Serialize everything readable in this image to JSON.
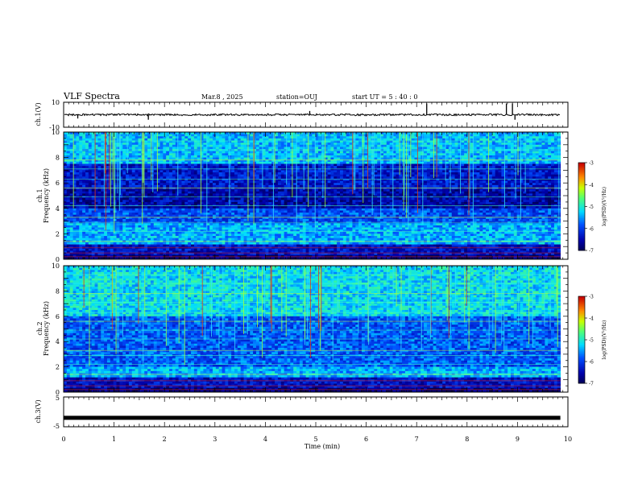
{
  "header": {
    "title": "VLF Spectra",
    "date": "Mar.8 , 2025",
    "station": "station=OUJ",
    "start_ut": "start UT = 5 : 40 : 0"
  },
  "chart_data": [
    {
      "type": "line",
      "name": "ch1-waveform",
      "ylabel": "ch.1(V)",
      "xlim": [
        0,
        10
      ],
      "ylim": [
        -10,
        10
      ],
      "yticks": [
        "10",
        "-10"
      ],
      "baseline": 0,
      "x_extent": 9.85,
      "spikes": [
        {
          "x": 0.28,
          "y": -3
        },
        {
          "x": 1.68,
          "y": -4
        },
        {
          "x": 4.88,
          "y": 3
        },
        {
          "x": 7.2,
          "y": 9
        },
        {
          "x": 8.78,
          "y": 9
        },
        {
          "x": 8.9,
          "y": 9
        },
        {
          "x": 8.95,
          "y": -4
        }
      ]
    },
    {
      "type": "heatmap",
      "name": "ch1-spectrogram",
      "ylabel_line1": "ch.1",
      "ylabel_line2": "Frequency (kHz)",
      "xlim": [
        0,
        10
      ],
      "ylim": [
        0,
        10
      ],
      "yticks": [
        "0",
        "2",
        "4",
        "6",
        "8",
        "10"
      ],
      "x_extent": 9.85,
      "colorbar": {
        "label": "log(PSD)(V²/Hz)",
        "ticks": [
          "-3",
          "-4",
          "-5",
          "-6",
          "-7"
        ],
        "range": [
          -7,
          -3
        ]
      }
    },
    {
      "type": "heatmap",
      "name": "ch2-spectrogram",
      "ylabel_line1": "ch.2",
      "ylabel_line2": "Frequency (kHz)",
      "xlim": [
        0,
        10
      ],
      "ylim": [
        0,
        10
      ],
      "yticks": [
        "0",
        "2",
        "4",
        "6",
        "8",
        "10"
      ],
      "x_extent": 9.85,
      "colorbar": {
        "label": "log(PSD)(V²/Hz)",
        "ticks": [
          "-3",
          "-4",
          "-5",
          "-6",
          "-7"
        ],
        "range": [
          -7,
          -3
        ]
      }
    },
    {
      "type": "line",
      "name": "ch3-waveform",
      "ylabel": "ch.3(V)",
      "xlim": [
        0,
        10
      ],
      "ylim": [
        -5,
        5
      ],
      "yticks": [
        "5",
        "-5"
      ],
      "value": -2,
      "x_extent": 9.85,
      "xlabel": "Time (min)",
      "xticks": [
        "0",
        "1",
        "2",
        "3",
        "4",
        "5",
        "6",
        "7",
        "8",
        "9",
        "10"
      ]
    }
  ]
}
